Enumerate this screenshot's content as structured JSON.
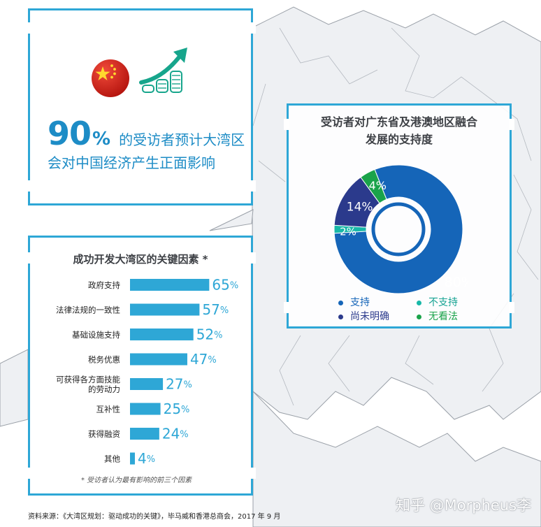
{
  "stat": {
    "big_value": "90",
    "big_unit": "%",
    "line1": "的受访者预计大湾区",
    "line2": "会对中国经济产生正面影响"
  },
  "colors": {
    "accent": "#2ea7d6",
    "stat_text": "#1d8cc6",
    "support": "#1565b8",
    "not_support": "#18b8a8",
    "unclear": "#2b3a8c",
    "no_opinion": "#1aa34a",
    "bar": "#2ea7d6"
  },
  "icons": [
    "china-flag-icon",
    "rising-coins-icon"
  ],
  "chart_data": [
    {
      "type": "pie",
      "title_line1": "受访者对广东省及港澳地区融合",
      "title_line2": "发展的支持度",
      "slices": [
        {
          "label": "支持",
          "value": 80,
          "text": "80%"
        },
        {
          "label": "不支持",
          "value": 2,
          "text": "2%"
        },
        {
          "label": "尚未明确",
          "value": 14,
          "text": "14%"
        },
        {
          "label": "无看法",
          "value": 4,
          "text": "4%"
        }
      ],
      "legend": [
        {
          "label": "支持"
        },
        {
          "label": "不支持"
        },
        {
          "label": "尚未明确"
        },
        {
          "label": "无看法"
        }
      ],
      "legend_placement": "bottom"
    },
    {
      "type": "bar",
      "orientation": "horizontal",
      "title": "成功开发大湾区的关键因素 *",
      "categories": [
        "政府支持",
        "法律法规的一致性",
        "基础设施支持",
        "税务优惠",
        "可获得各方面技能的劳动力",
        "互补性",
        "获得融资",
        "其他"
      ],
      "category_lines": [
        [
          "政府支持"
        ],
        [
          "法律法规的一致性"
        ],
        [
          "基础设施支持"
        ],
        [
          "税务优惠"
        ],
        [
          "可获得各方面技能",
          "的劳动力"
        ],
        [
          "互补性"
        ],
        [
          "获得融资"
        ],
        [
          "其他"
        ]
      ],
      "values": [
        65,
        57,
        52,
        47,
        27,
        25,
        24,
        4
      ],
      "unit": "%",
      "footnote": "* 受访者认为最有影响的前三个因素"
    }
  ],
  "source": "资料来源：《大湾区规划：驱动成功的关键》，毕马威和香港总商会，2017 年 9 月",
  "watermark": "知乎 @Morpheus李"
}
